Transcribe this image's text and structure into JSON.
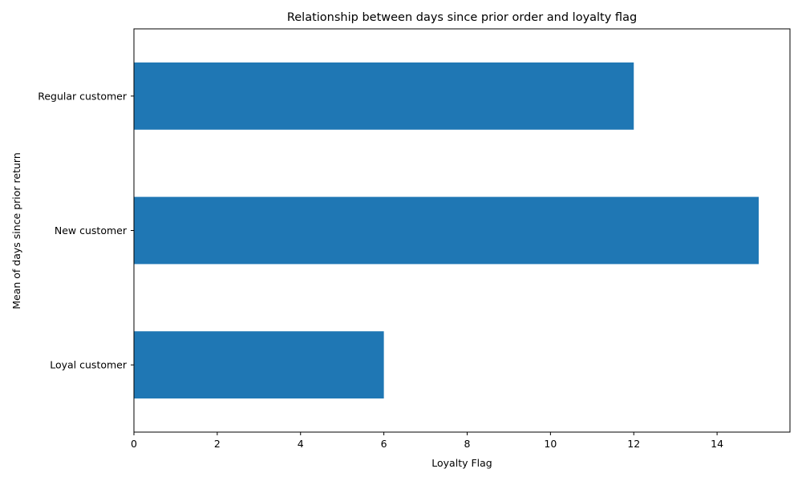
{
  "chart_data": {
    "type": "bar",
    "orientation": "horizontal",
    "title": "Relationship between days since prior order and loyalty flag",
    "xlabel": "Loyalty Flag",
    "ylabel": "Mean of days since prior return",
    "categories": [
      "Loyal customer",
      "New customer",
      "Regular customer"
    ],
    "values": [
      6,
      15,
      12
    ],
    "xlim": [
      0,
      15.75
    ],
    "xticks": [
      0,
      2,
      4,
      6,
      8,
      10,
      12,
      14
    ],
    "grid": false,
    "bar_color": "#1f77b4"
  }
}
